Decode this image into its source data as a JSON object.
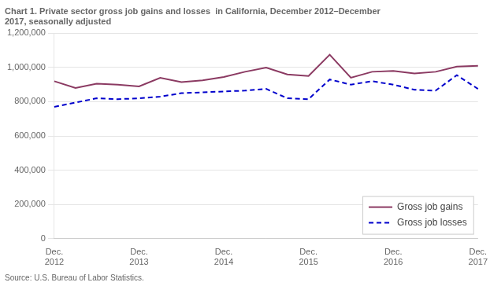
{
  "chart_data": {
    "type": "line",
    "title": "Chart 1. Private sector gross job gains and losses  in California, December 2012–December\n2017, seasonally adjusted",
    "source": "Source: U.S. Bureau of Labor Statistics.",
    "categories": [
      "Dec.\n2012",
      null,
      null,
      null,
      "Dec.\n2013",
      null,
      null,
      null,
      "Dec.\n2014",
      null,
      null,
      null,
      "Dec.\n2015",
      null,
      null,
      null,
      "Dec.\n2016",
      null,
      null,
      null,
      "Dec.\n2017"
    ],
    "series": [
      {
        "name": "Gross job gains",
        "color": "#8B3A62",
        "line_style": "solid",
        "marker": "none",
        "values": [
          920000,
          880000,
          905000,
          900000,
          890000,
          940000,
          915000,
          925000,
          945000,
          975000,
          1000000,
          960000,
          950000,
          1075000,
          940000,
          975000,
          980000,
          965000,
          975000,
          1005000,
          1010000
        ]
      },
      {
        "name": "Gross job losses",
        "color": "#0000CC",
        "line_style": "dashed",
        "marker": "none",
        "values": [
          770000,
          795000,
          820000,
          815000,
          820000,
          830000,
          850000,
          855000,
          860000,
          865000,
          875000,
          820000,
          815000,
          930000,
          900000,
          920000,
          900000,
          870000,
          865000,
          955000,
          875000
        ]
      }
    ],
    "ylim": [
      0,
      1200000
    ],
    "yticks": [
      0,
      {
        "value": 200000,
        "label": "200,000"
      },
      {
        "value": 400000,
        "label": "400,000"
      },
      {
        "value": 600000,
        "label": "600,000"
      },
      {
        "value": 800000,
        "label": "800,000"
      },
      {
        "value": 1000000,
        "label": "1,000,000"
      },
      {
        "value": 1200000,
        "label": "1,200,000"
      }
    ],
    "grid": "y",
    "legend": "lower right"
  }
}
